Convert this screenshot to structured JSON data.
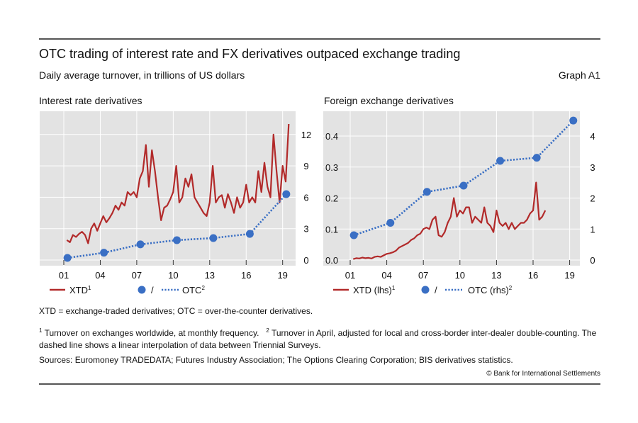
{
  "header": {
    "title": "OTC trading of interest rate and FX derivatives outpaced exchange trading",
    "subtitle": "Daily average turnover, in trillions of US dollars",
    "graph_id": "Graph A1"
  },
  "colors": {
    "xtd": "#b22a2a",
    "otc": "#3a6fc4",
    "plot_bg": "#e3e3e3",
    "grid": "#ffffff"
  },
  "chart_data": [
    {
      "type": "line",
      "title": "Interest rate derivatives",
      "x_ticks": [
        "01",
        "04",
        "07",
        "10",
        "13",
        "16",
        "19"
      ],
      "x_tick_years": [
        2001,
        2004,
        2007,
        2010,
        2013,
        2016,
        2019
      ],
      "y_right": {
        "ticks": [
          "0",
          "3",
          "6",
          "9",
          "12"
        ],
        "tick_values": [
          0,
          3,
          6,
          9,
          12
        ],
        "range": [
          -0.5,
          14
        ]
      },
      "grid": true,
      "legend": {
        "placement": "bottom",
        "xtd_label": "XTD",
        "xtd_sup": "1",
        "sep": "/",
        "otc_label": "OTC",
        "otc_sup": "2"
      },
      "series": [
        {
          "name": "XTD",
          "axis": "right",
          "style": "solid",
          "x_start": 2001.25,
          "x_step": 0.25,
          "values": [
            1.9,
            1.7,
            2.4,
            2.2,
            2.5,
            2.7,
            2.4,
            1.6,
            3.0,
            3.5,
            2.8,
            3.5,
            4.2,
            3.6,
            4.0,
            4.5,
            5.2,
            4.8,
            5.5,
            5.2,
            6.5,
            6.2,
            6.5,
            6.0,
            7.8,
            8.5,
            11.0,
            7.0,
            10.5,
            8.5,
            6.0,
            3.8,
            5.0,
            5.2,
            5.8,
            6.5,
            9.0,
            5.5,
            6.0,
            7.8,
            7.0,
            8.2,
            6.0,
            5.5,
            5.0,
            4.5,
            4.2,
            5.5,
            9.0,
            5.5,
            6.0,
            6.2,
            5.0,
            6.3,
            5.5,
            4.5,
            6.0,
            5.0,
            5.5,
            7.2,
            5.5,
            6.0,
            5.5,
            8.5,
            6.5,
            9.3,
            7.0,
            6.0,
            12.0,
            8.5,
            5.5,
            9.0,
            7.5,
            13.0
          ]
        },
        {
          "name": "OTC",
          "axis": "right",
          "style": "dotted",
          "markers": true,
          "x": [
            2001.3,
            2004.3,
            2007.3,
            2010.3,
            2013.3,
            2016.3,
            2019.3
          ],
          "values": [
            0.2,
            0.7,
            1.5,
            1.9,
            2.1,
            2.5,
            6.3
          ]
        }
      ]
    },
    {
      "type": "line",
      "title": "Foreign exchange derivatives",
      "x_ticks": [
        "01",
        "04",
        "07",
        "10",
        "13",
        "16",
        "19"
      ],
      "x_tick_years": [
        2001,
        2004,
        2007,
        2010,
        2013,
        2016,
        2019
      ],
      "y_left": {
        "label": "lhs",
        "ticks": [
          "0.0",
          "0.1",
          "0.2",
          "0.3",
          "0.4"
        ],
        "tick_values": [
          0,
          0.1,
          0.2,
          0.3,
          0.4
        ],
        "range": [
          -0.018,
          0.48
        ]
      },
      "y_right": {
        "label": "rhs",
        "ticks": [
          "0",
          "1",
          "2",
          "3",
          "4"
        ],
        "tick_values": [
          0,
          1,
          2,
          3,
          4
        ],
        "range": [
          -0.18,
          4.8
        ]
      },
      "grid": true,
      "legend": {
        "placement": "bottom",
        "xtd_label": "XTD (lhs)",
        "xtd_sup": "1",
        "sep": "/",
        "otc_label": "OTC (rhs)",
        "otc_sup": "2"
      },
      "series": [
        {
          "name": "XTD (lhs)",
          "axis": "left",
          "style": "solid",
          "x_start": 2001.25,
          "x_step": 0.25,
          "values": [
            0.003,
            0.006,
            0.005,
            0.008,
            0.006,
            0.007,
            0.005,
            0.01,
            0.012,
            0.01,
            0.015,
            0.02,
            0.022,
            0.025,
            0.03,
            0.04,
            0.045,
            0.05,
            0.055,
            0.065,
            0.07,
            0.08,
            0.085,
            0.1,
            0.105,
            0.1,
            0.13,
            0.14,
            0.08,
            0.075,
            0.09,
            0.12,
            0.14,
            0.2,
            0.14,
            0.16,
            0.15,
            0.17,
            0.17,
            0.12,
            0.14,
            0.13,
            0.12,
            0.17,
            0.12,
            0.11,
            0.09,
            0.16,
            0.12,
            0.11,
            0.12,
            0.1,
            0.12,
            0.1,
            0.11,
            0.12,
            0.12,
            0.13,
            0.15,
            0.16,
            0.25,
            0.13,
            0.14,
            0.16
          ]
        },
        {
          "name": "OTC (rhs)",
          "axis": "right",
          "style": "dotted",
          "markers": true,
          "x": [
            2001.3,
            2004.3,
            2007.3,
            2010.3,
            2013.3,
            2016.3,
            2019.3
          ],
          "values": [
            0.8,
            1.2,
            2.2,
            2.4,
            3.2,
            3.3,
            4.5
          ]
        }
      ]
    }
  ],
  "footer": {
    "abbrev": "XTD = exchange-traded derivatives; OTC = over-the-counter derivatives.",
    "note1_sup": "1",
    "note1": "Turnover on exchanges worldwide, at monthly frequency.",
    "note2_sup": "2",
    "note2": "Turnover in April, adjusted for local and cross-border inter-dealer double-counting. The dashed line shows a linear interpolation of data between Triennial Surveys.",
    "sources": "Sources: Euromoney TRADEDATA; Futures Industry Association; The Options Clearing Corporation; BIS derivatives statistics.",
    "copyright": "© Bank for International Settlements"
  }
}
